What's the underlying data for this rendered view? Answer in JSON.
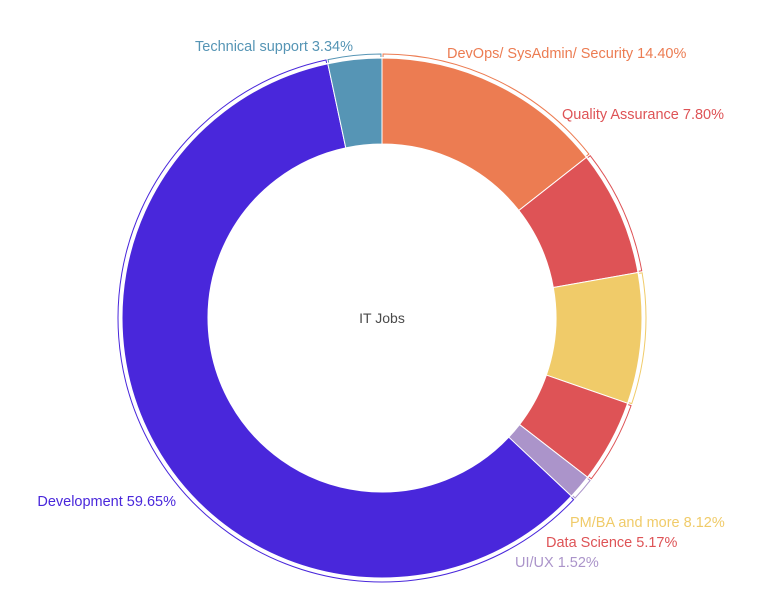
{
  "chart_data": {
    "type": "pie",
    "variant": "donut",
    "title": "IT Jobs",
    "start": "top",
    "direction": "clockwise",
    "slices": [
      {
        "label": "DevOps/ SysAdmin/ Security",
        "value": 14.4,
        "display": "DevOps/ SysAdmin/ Security 14.40%",
        "color": "#ec7c52"
      },
      {
        "label": "Quality Assurance",
        "value": 7.8,
        "display": "Quality Assurance 7.80%",
        "color": "#de5356"
      },
      {
        "label": "PM/BA and more",
        "value": 8.12,
        "display": "PM/BA and more 8.12%",
        "color": "#f0cb69"
      },
      {
        "label": "Data Science",
        "value": 5.17,
        "display": "Data Science 5.17%",
        "color": "#de5356"
      },
      {
        "label": "UI/UX",
        "value": 1.52,
        "display": "UI/UX 1.52%",
        "color": "#ab94ca"
      },
      {
        "label": "Development",
        "value": 59.65,
        "display": "Development 59.65%",
        "color": "#4927db"
      },
      {
        "label": "Technical support",
        "value": 3.34,
        "display": "Technical support 3.34%",
        "color": "#5695b5"
      }
    ],
    "legend": "none",
    "data_labels": "outside"
  }
}
